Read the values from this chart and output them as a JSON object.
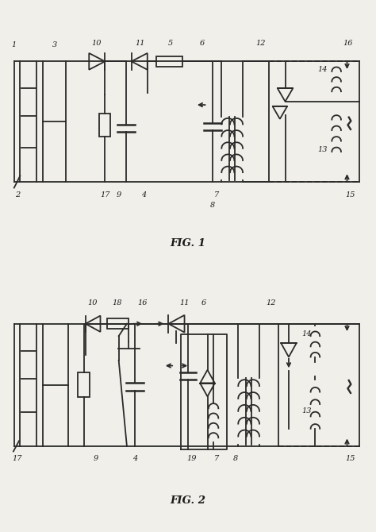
{
  "bg_color": "#f0efea",
  "lc": "#2a2a2a",
  "tc": "#1a1a1a",
  "lw": 1.3,
  "fig1_title": "FIG. 1",
  "fig2_title": "FIG. 2"
}
